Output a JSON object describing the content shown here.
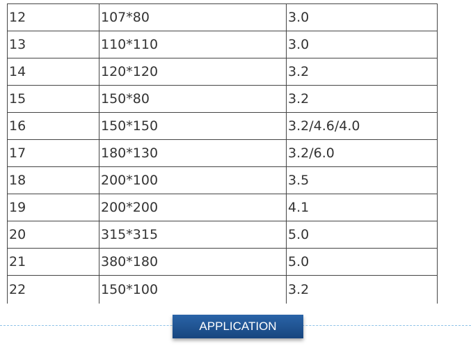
{
  "table": {
    "rows": [
      [
        "12",
        "107*80",
        "3.0"
      ],
      [
        "13",
        "110*110",
        "3.0"
      ],
      [
        "14",
        "120*120",
        "3.2"
      ],
      [
        "15",
        "150*80",
        "3.2"
      ],
      [
        "16",
        "150*150",
        "3.2/4.6/4.0"
      ],
      [
        "17",
        "180*130",
        "3.2/6.0"
      ],
      [
        "18",
        "200*100",
        "3.5"
      ],
      [
        "19",
        "200*200",
        "4.1"
      ],
      [
        "20",
        "315*315",
        "5.0"
      ],
      [
        "21",
        "380*180",
        "5.0"
      ],
      [
        "22",
        "150*100",
        "3.2"
      ]
    ]
  },
  "button": {
    "label": "APPLICATION"
  }
}
